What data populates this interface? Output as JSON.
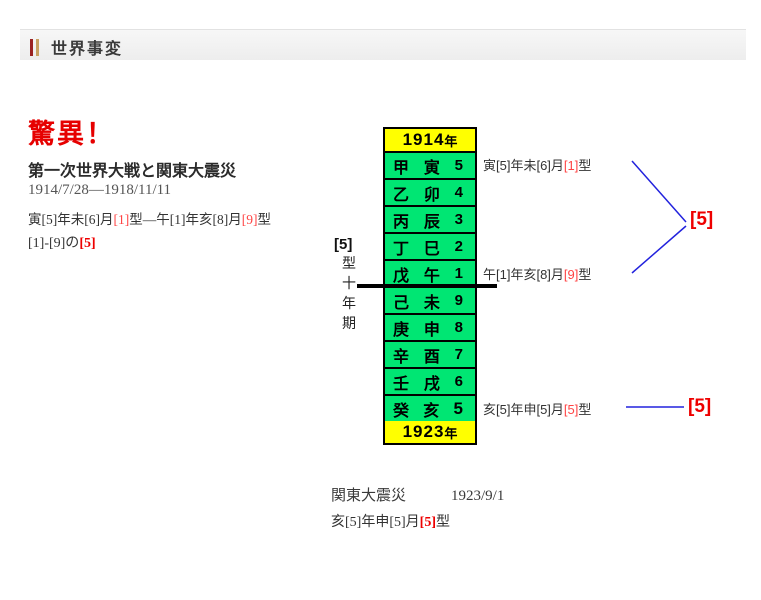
{
  "header": {
    "title": "世界事変"
  },
  "article": {
    "headline": "驚異！",
    "subtitle": "第一次世界大戦と関東大震災",
    "date_range": "1914/7/28—1918/11/11",
    "formula_line": [
      {
        "t": "寅[5]年未[6]月"
      },
      {
        "t": "[1]",
        "red": true
      },
      {
        "t": "型—午[1]年亥[8]月"
      },
      {
        "t": "[9]",
        "red": true
      },
      {
        "t": "型"
      }
    ],
    "result_line": [
      {
        "t": "[1]-[9]の"
      },
      {
        "t": "[5]",
        "red": true,
        "bold": true
      }
    ]
  },
  "diagram": {
    "period_label": {
      "head": "[5]",
      "vertical": "型十年期"
    },
    "table": {
      "top_year": "1914",
      "top_suffix": "年",
      "bottom_year": "1923",
      "bottom_suffix": "年",
      "rows": [
        {
          "stem": "甲",
          "branch": "寅",
          "num": "5",
          "emph": false
        },
        {
          "stem": "乙",
          "branch": "卯",
          "num": "4",
          "emph": false
        },
        {
          "stem": "丙",
          "branch": "辰",
          "num": "3",
          "emph": false
        },
        {
          "stem": "丁",
          "branch": "巳",
          "num": "2",
          "emph": false
        },
        {
          "stem": "戊",
          "branch": "午",
          "num": "1",
          "emph": false
        },
        {
          "stem": "己",
          "branch": "未",
          "num": "9",
          "emph": false
        },
        {
          "stem": "庚",
          "branch": "申",
          "num": "8",
          "emph": false
        },
        {
          "stem": "辛",
          "branch": "酉",
          "num": "7",
          "emph": false
        },
        {
          "stem": "壬",
          "branch": "戌",
          "num": "6",
          "emph": false
        },
        {
          "stem": "癸",
          "branch": "亥",
          "num": "5",
          "emph": true
        }
      ],
      "colors": {
        "cap_bg": "#ffff00",
        "row_bg": "#00e673",
        "border": "#000000"
      }
    },
    "annotations": {
      "top": [
        {
          "t": "寅[5]年未[6]月"
        },
        {
          "t": "[1]",
          "red": true
        },
        {
          "t": "型"
        }
      ],
      "middle": [
        {
          "t": "午[1]年亥[8]月"
        },
        {
          "t": "[9]",
          "red": true
        },
        {
          "t": "型"
        }
      ],
      "bottom": [
        {
          "t": "亥[5]年申[5]月"
        },
        {
          "t": "[5]",
          "red": true
        },
        {
          "t": "型"
        }
      ]
    },
    "group_label": "[5]",
    "single_label": "[5]",
    "line_color": "#2222dd"
  },
  "caption": {
    "event_line": "関東大震災　　　1923/9/1",
    "formula": [
      {
        "t": "亥[5]年申[5]月"
      },
      {
        "t": "[5]",
        "red": true,
        "bold": true
      },
      {
        "t": "型"
      }
    ]
  }
}
